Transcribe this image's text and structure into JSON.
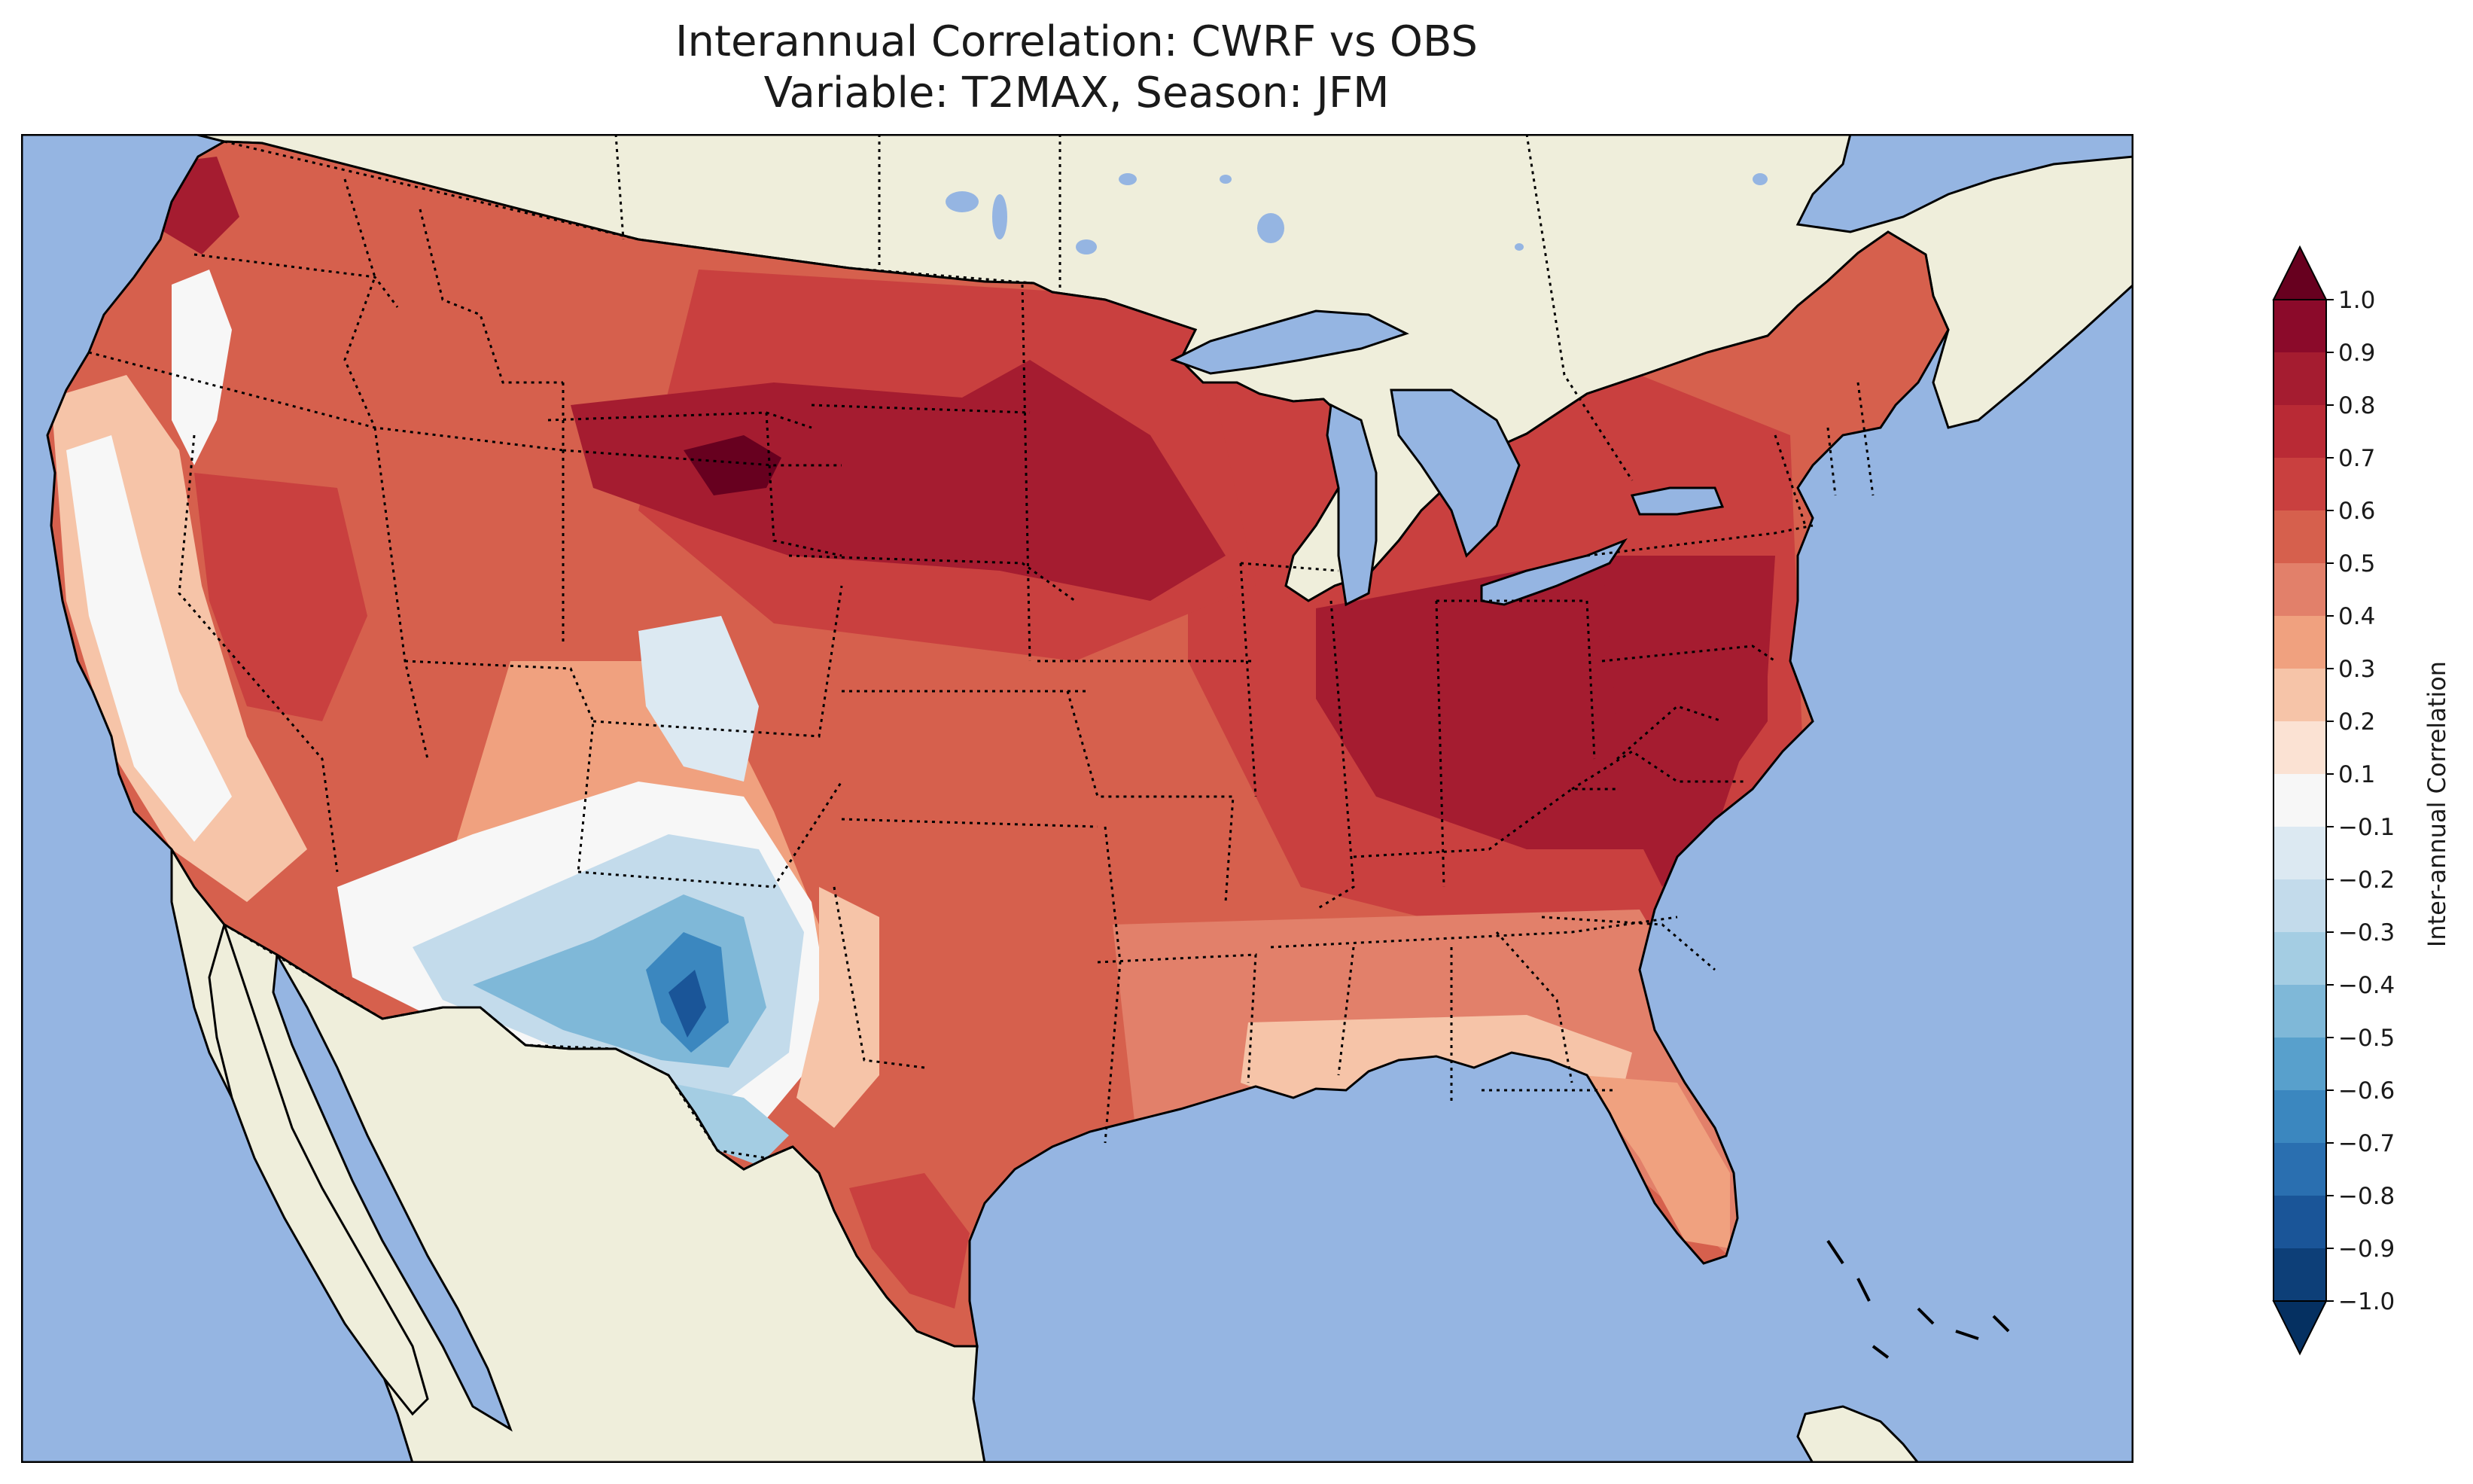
{
  "title": {
    "line1": "Interannual Correlation: CWRF vs OBS",
    "line2": "Variable: T2MAX, Season: JFM"
  },
  "map": {
    "region": "contiguous-united-states",
    "projection": "lambert-conformal",
    "ocean_color": "#95b5e2",
    "land_color": "#efeedb",
    "coastline_color": "#000000",
    "state_border_style": "dotted",
    "features": [
      "coastlines",
      "state-borders",
      "country-borders",
      "lakes"
    ],
    "field_pattern": [
      {
        "area": "northern-plains-upper-midwest",
        "value": 0.85
      },
      {
        "area": "east-and-ohio-valley",
        "value": 0.8
      },
      {
        "area": "southeast-gulf-coast",
        "value": 0.3
      },
      {
        "area": "southwest-new-mexico",
        "value": -0.6
      },
      {
        "area": "california-coast",
        "value": 0.0
      },
      {
        "area": "texas",
        "value": 0.6
      }
    ]
  },
  "colorbar": {
    "label": "Inter-annual Correlation",
    "ticks": [
      "1.0",
      "0.9",
      "0.8",
      "0.7",
      "0.6",
      "0.5",
      "0.4",
      "0.3",
      "0.2",
      "0.1",
      "−0.1",
      "−0.2",
      "−0.3",
      "−0.4",
      "−0.5",
      "−0.6",
      "−0.7",
      "−0.8",
      "−0.9",
      "−1.0"
    ],
    "levels": [
      1.0,
      0.9,
      0.8,
      0.7,
      0.6,
      0.5,
      0.4,
      0.3,
      0.2,
      0.1,
      -0.1,
      -0.2,
      -0.3,
      -0.4,
      -0.5,
      -0.6,
      -0.7,
      -0.8,
      -0.9,
      -1.0
    ],
    "colors": [
      "#67001f",
      "#8b0a2a",
      "#a51c30",
      "#b92a35",
      "#c9403f",
      "#d6604d",
      "#e2806a",
      "#f0a17f",
      "#f6c4a8",
      "#fbe2d3",
      "#f7f7f7",
      "#dce9f2",
      "#c3dbeb",
      "#a4cde3",
      "#7fb8d8",
      "#58a0cc",
      "#3b87bf",
      "#2a6fb0",
      "#1a5598",
      "#0d3f78",
      "#053061"
    ],
    "extend": "both",
    "orientation": "vertical"
  }
}
